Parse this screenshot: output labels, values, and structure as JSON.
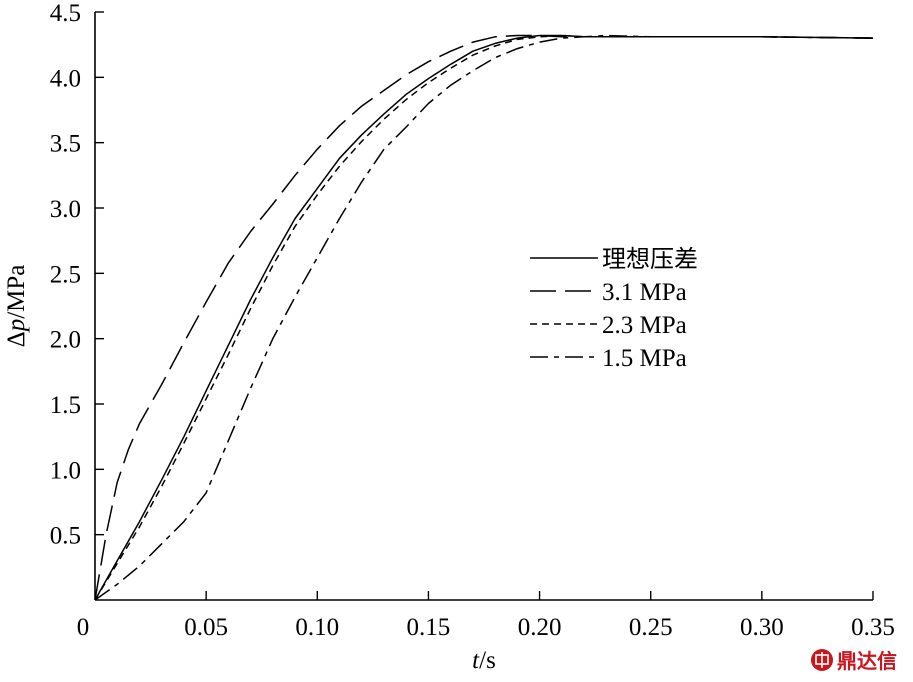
{
  "chart_data": {
    "type": "line",
    "title": "",
    "xlabel_italic": "t",
    "xlabel_unit": "/s",
    "ylabel_prefix": "Δ",
    "ylabel_italic": "p",
    "ylabel_unit": "/MPa",
    "xlim": [
      0,
      0.35
    ],
    "ylim": [
      0,
      4.5
    ],
    "x_ticks": [
      0.05,
      0.1,
      0.15,
      0.2,
      0.25,
      0.3,
      0.35
    ],
    "x_tick_labels": [
      "0.05",
      "0.10",
      "0.15",
      "0.20",
      "0.25",
      "0.30",
      "0.35"
    ],
    "y_ticks": [
      0.5,
      1.0,
      1.5,
      2.0,
      2.5,
      3.0,
      3.5,
      4.0,
      4.5
    ],
    "y_tick_labels": [
      "0.5",
      "1.0",
      "1.5",
      "2.0",
      "2.5",
      "3.0",
      "3.5",
      "4.0",
      "4.5"
    ],
    "origin_label": "0",
    "grid": false,
    "legend_position": "center-right",
    "series": [
      {
        "name": "理想压差",
        "dash": "solid",
        "x": [
          0,
          0.01,
          0.02,
          0.03,
          0.04,
          0.05,
          0.06,
          0.07,
          0.08,
          0.09,
          0.1,
          0.11,
          0.12,
          0.13,
          0.14,
          0.15,
          0.16,
          0.17,
          0.18,
          0.19,
          0.2,
          0.21,
          0.22,
          0.25,
          0.3,
          0.35
        ],
        "y": [
          0,
          0.3,
          0.6,
          0.92,
          1.25,
          1.6,
          1.95,
          2.3,
          2.62,
          2.92,
          3.15,
          3.38,
          3.56,
          3.72,
          3.87,
          3.99,
          4.1,
          4.2,
          4.26,
          4.3,
          4.32,
          4.32,
          4.31,
          4.31,
          4.31,
          4.3
        ]
      },
      {
        "name": "3.1 MPa",
        "dash": "long",
        "x": [
          0,
          0.005,
          0.01,
          0.015,
          0.02,
          0.03,
          0.04,
          0.05,
          0.06,
          0.07,
          0.08,
          0.09,
          0.1,
          0.11,
          0.12,
          0.13,
          0.14,
          0.15,
          0.16,
          0.17,
          0.18,
          0.19,
          0.2,
          0.21,
          0.25,
          0.3,
          0.35
        ],
        "y": [
          0,
          0.5,
          0.9,
          1.15,
          1.35,
          1.65,
          1.97,
          2.28,
          2.58,
          2.82,
          3.03,
          3.25,
          3.45,
          3.63,
          3.78,
          3.9,
          4.02,
          4.12,
          4.2,
          4.27,
          4.31,
          4.32,
          4.32,
          4.31,
          4.31,
          4.31,
          4.3
        ]
      },
      {
        "name": "2.3 MPa",
        "dash": "short",
        "x": [
          0,
          0.01,
          0.02,
          0.03,
          0.04,
          0.05,
          0.06,
          0.07,
          0.08,
          0.09,
          0.1,
          0.11,
          0.12,
          0.13,
          0.14,
          0.15,
          0.16,
          0.17,
          0.18,
          0.19,
          0.2,
          0.21,
          0.22,
          0.25,
          0.3,
          0.35
        ],
        "y": [
          0,
          0.28,
          0.56,
          0.87,
          1.2,
          1.54,
          1.88,
          2.23,
          2.56,
          2.86,
          3.1,
          3.32,
          3.51,
          3.68,
          3.83,
          3.96,
          4.07,
          4.17,
          4.24,
          4.29,
          4.31,
          4.32,
          4.31,
          4.31,
          4.31,
          4.3
        ]
      },
      {
        "name": "1.5 MPa",
        "dash": "dashdot",
        "x": [
          0,
          0.01,
          0.02,
          0.03,
          0.04,
          0.05,
          0.06,
          0.07,
          0.08,
          0.09,
          0.1,
          0.11,
          0.12,
          0.13,
          0.14,
          0.15,
          0.16,
          0.17,
          0.18,
          0.19,
          0.2,
          0.21,
          0.22,
          0.23,
          0.25,
          0.3,
          0.35
        ],
        "y": [
          0,
          0.12,
          0.26,
          0.43,
          0.6,
          0.82,
          1.22,
          1.62,
          2.0,
          2.32,
          2.62,
          2.92,
          3.2,
          3.45,
          3.62,
          3.8,
          3.94,
          4.05,
          4.15,
          4.22,
          4.27,
          4.3,
          4.31,
          4.32,
          4.31,
          4.31,
          4.3
        ]
      }
    ]
  },
  "colors": {
    "axis": "#000000",
    "series": "#000000",
    "watermark": "#c8161d"
  },
  "watermark": {
    "icon": "seal-icon",
    "text": "鼎达信"
  }
}
